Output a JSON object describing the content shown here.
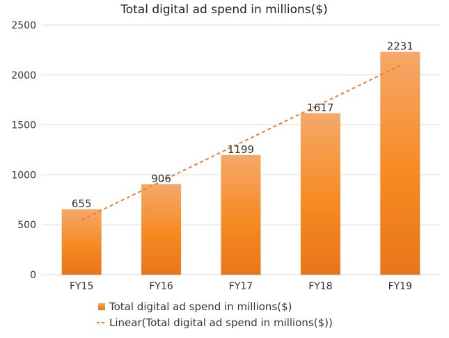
{
  "chart_data": {
    "type": "bar",
    "title": "Total digital ad spend in millions($)",
    "categories": [
      "FY15",
      "FY16",
      "FY17",
      "FY18",
      "FY19"
    ],
    "series": [
      {
        "name": "Total digital ad spend in millions($)",
        "values": [
          655,
          906,
          1199,
          1617,
          2231
        ]
      }
    ],
    "trendline": {
      "type": "linear",
      "name": "Linear(Total digital ad spend in millions($))"
    },
    "data_labels": [
      "655",
      "906",
      "1199",
      "1617",
      "2231"
    ],
    "ylim": [
      0,
      2500
    ],
    "yticks": [
      0,
      500,
      1000,
      1500,
      2000,
      2500
    ],
    "ytick_labels": [
      "0",
      "500",
      "1000",
      "1500",
      "2000",
      "2500"
    ],
    "xlabel": "",
    "ylabel": "",
    "grid": true,
    "legend_position": "bottom",
    "colors": {
      "bar_top": "#f5a869",
      "bar_bottom": "#e8761a",
      "trend": "#ed7d31",
      "grid": "#d9d9d9"
    }
  }
}
